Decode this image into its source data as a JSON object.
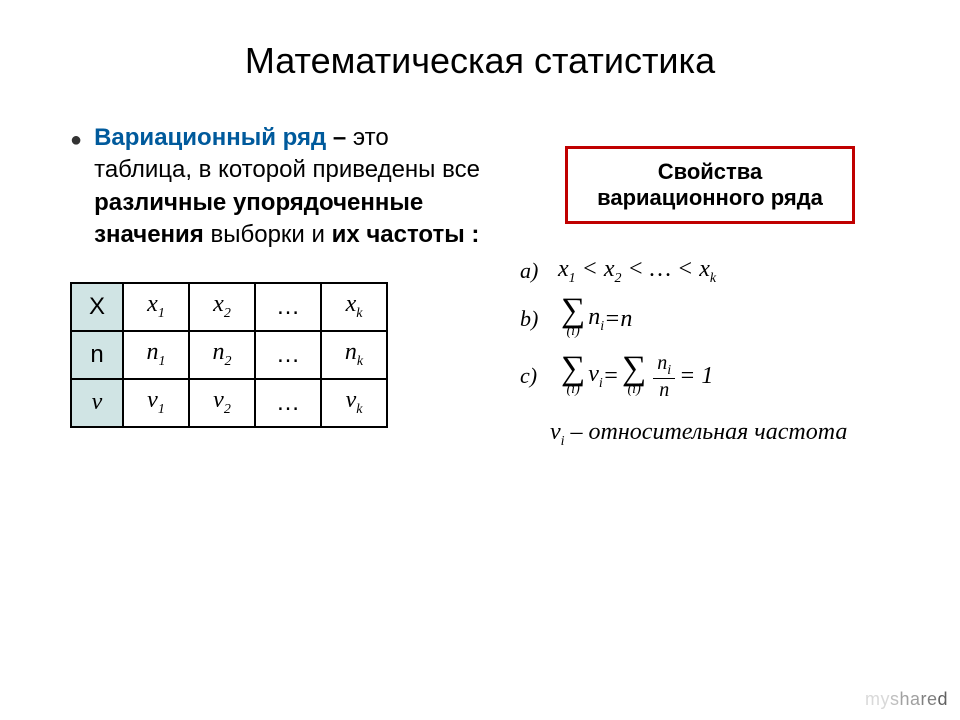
{
  "title": "Математическая статистика",
  "definition": {
    "term": "Вариационный ряд",
    "dash": "–",
    "part1": "это таблица, в которой приведены все",
    "bold1": "различные упорядоченные значения",
    "part2": "выборки и",
    "bold2": "их частоты :"
  },
  "table": {
    "header_bg": "#d0e4e4",
    "border_color": "#000000",
    "rows": [
      {
        "head": "X",
        "c1": "x",
        "s1": "1",
        "c2": "x",
        "s2": "2",
        "dots": "…",
        "c3": "x",
        "s3": "k"
      },
      {
        "head": "n",
        "c1": "n",
        "s1": "1",
        "c2": "n",
        "s2": "2",
        "dots": "…",
        "c3": "n",
        "s3": "k"
      },
      {
        "head": "ν",
        "c1": "ν",
        "s1": "1",
        "c2": "ν",
        "s2": "2",
        "dots": "…",
        "c3": "ν",
        "s3": "k"
      }
    ]
  },
  "props_box": {
    "line1": "Свойства",
    "line2": "вариационного ряда",
    "border_color": "#c00000"
  },
  "formulas": {
    "a": {
      "label": "a)",
      "text_before": "x",
      "s1": "1",
      "lt1": " < ",
      "m2": "x",
      "s2": "2",
      "lt2": " < … < ",
      "m3": "x",
      "s3": "k"
    },
    "b": {
      "label": "b)",
      "sum_idx": "(i)",
      "var": "n",
      "vs": "i",
      "eq": " = ",
      "rhs": "n"
    },
    "c": {
      "label": "c)",
      "sum1_idx": "(i)",
      "v1": "ν",
      "v1s": "i",
      "eq1": " = ",
      "sum2_idx": "(i)",
      "num": "n",
      "nums": "i",
      "den": "n",
      "eq2": " = 1"
    }
  },
  "note": {
    "v": "ν",
    "vs": "i",
    "dash": " – ",
    "text": "относительная  частота"
  },
  "watermark": "myshared"
}
